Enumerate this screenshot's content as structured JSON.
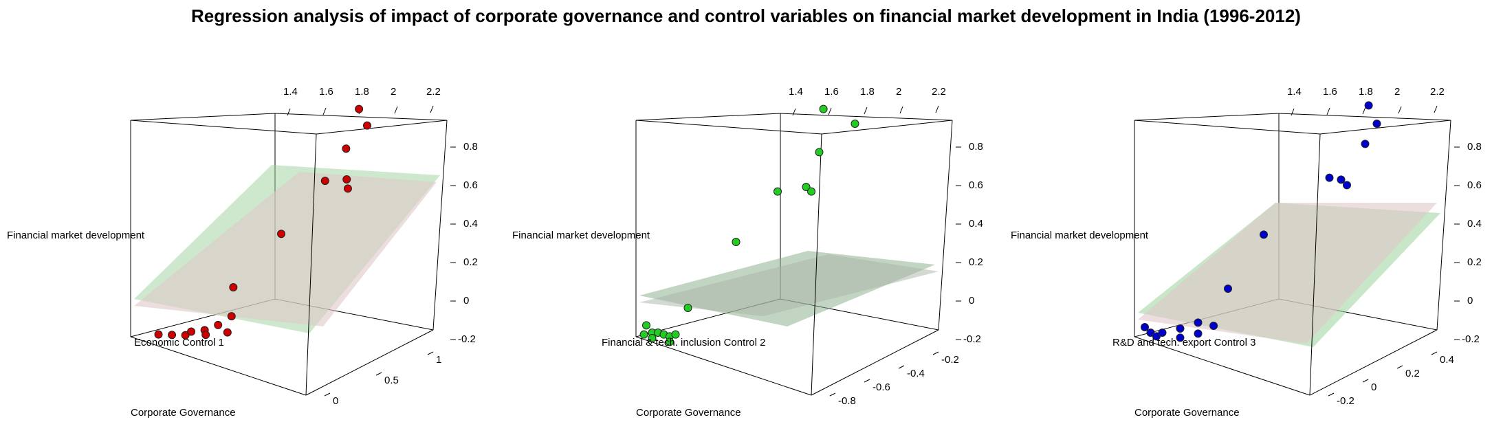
{
  "title": "Regression analysis of impact of corporate governance and control variables on financial market development in India (1996-2012)",
  "chart_data": [
    {
      "type": "scatter",
      "ylabel": "Financial market development",
      "xlabel": "Corporate Governance",
      "zlabel": "Economic Control 1",
      "point_color": "#cc0000",
      "x_ticks": [
        "1.4",
        "1.6",
        "1.8",
        "2",
        "2.2"
      ],
      "y_ticks": [
        "0.8",
        "0.6",
        "0.4",
        "0.2",
        "0",
        "-0.2"
      ],
      "z_ticks": [
        "1",
        "0.5",
        "0"
      ],
      "planes": [
        {
          "color": "#9bd29b",
          "opacity": 0.5
        },
        {
          "color": "#e0c8c8",
          "opacity": 0.6
        }
      ],
      "points": [
        {
          "x": 1.93,
          "y": 0.88,
          "z": 0.95
        },
        {
          "x": 2.0,
          "y": 0.79,
          "z": 0.95
        },
        {
          "x": 1.95,
          "y": 0.68,
          "z": 0.85
        },
        {
          "x": 1.9,
          "y": 0.52,
          "z": 0.75
        },
        {
          "x": 2.02,
          "y": 0.52,
          "z": 0.8
        },
        {
          "x": 2.03,
          "y": 0.47,
          "z": 0.8
        },
        {
          "x": 1.85,
          "y": 0.27,
          "z": 0.5
        },
        {
          "x": 1.7,
          "y": 0.01,
          "z": 0.3
        },
        {
          "x": 1.45,
          "y": -0.2,
          "z": 0.0
        },
        {
          "x": 1.5,
          "y": -0.21,
          "z": 0.05
        },
        {
          "x": 1.55,
          "y": -0.22,
          "z": 0.1
        },
        {
          "x": 1.6,
          "y": -0.2,
          "z": 0.1
        },
        {
          "x": 1.65,
          "y": -0.2,
          "z": 0.15
        },
        {
          "x": 1.7,
          "y": -0.18,
          "z": 0.2
        },
        {
          "x": 1.75,
          "y": -0.14,
          "z": 0.25
        },
        {
          "x": 1.78,
          "y": -0.22,
          "z": 0.2
        },
        {
          "x": 1.62,
          "y": -0.23,
          "z": 0.18
        }
      ]
    },
    {
      "type": "scatter",
      "ylabel": "Financial market development",
      "xlabel": "Corporate Governance",
      "zlabel": "Financial & tech. inclusion Control 2",
      "point_color": "#22cc22",
      "x_ticks": [
        "1.4",
        "1.6",
        "1.8",
        "2",
        "2.2"
      ],
      "y_ticks": [
        "0.8",
        "0.6",
        "0.4",
        "0.2",
        "0",
        "-0.2"
      ],
      "z_ticks": [
        "-0.2",
        "-0.4",
        "-0.6",
        "-0.8"
      ],
      "planes": [
        {
          "color": "#8fb08f",
          "opacity": 0.55
        },
        {
          "color": "#a8b4a8",
          "opacity": 0.5
        }
      ],
      "points": [
        {
          "x": 1.58,
          "y": 0.88,
          "z": -0.2
        },
        {
          "x": 1.85,
          "y": 0.8,
          "z": -0.2
        },
        {
          "x": 1.75,
          "y": 0.67,
          "z": -0.3
        },
        {
          "x": 2.05,
          "y": 0.53,
          "z": -0.5
        },
        {
          "x": 2.3,
          "y": 0.53,
          "z": -0.6
        },
        {
          "x": 1.6,
          "y": 0.48,
          "z": -0.4
        },
        {
          "x": 1.45,
          "y": 0.23,
          "z": -0.5
        },
        {
          "x": 1.45,
          "y": -0.08,
          "z": -0.7
        },
        {
          "x": 1.3,
          "y": -0.15,
          "z": -0.8
        },
        {
          "x": 1.35,
          "y": -0.19,
          "z": -0.8
        },
        {
          "x": 1.4,
          "y": -0.19,
          "z": -0.8
        },
        {
          "x": 1.45,
          "y": -0.2,
          "z": -0.8
        },
        {
          "x": 1.5,
          "y": -0.21,
          "z": -0.8
        },
        {
          "x": 1.55,
          "y": -0.2,
          "z": -0.8
        },
        {
          "x": 1.35,
          "y": -0.22,
          "z": -0.8
        },
        {
          "x": 1.5,
          "y": -0.24,
          "z": -0.8
        },
        {
          "x": 1.28,
          "y": -0.2,
          "z": -0.8
        }
      ]
    },
    {
      "type": "scatter",
      "ylabel": "Financial market development",
      "xlabel": "Corporate Governance",
      "zlabel": "R&D and tech. export Control 3",
      "point_color": "#0000cc",
      "x_ticks": [
        "1.4",
        "1.6",
        "1.8",
        "2",
        "2.2"
      ],
      "y_ticks": [
        "0.8",
        "0.6",
        "0.4",
        "0.2",
        "0",
        "-0.2"
      ],
      "z_ticks": [
        "0.4",
        "0.2",
        "0",
        "-0.2"
      ],
      "planes": [
        {
          "color": "#9bd29b",
          "opacity": 0.55
        },
        {
          "color": "#e0c8c8",
          "opacity": 0.6
        }
      ],
      "points": [
        {
          "x": 1.98,
          "y": 0.9,
          "z": 0.4
        },
        {
          "x": 2.05,
          "y": 0.8,
          "z": 0.4
        },
        {
          "x": 1.95,
          "y": 0.69,
          "z": 0.4
        },
        {
          "x": 1.85,
          "y": 0.53,
          "z": 0.3
        },
        {
          "x": 1.95,
          "y": 0.52,
          "z": 0.3
        },
        {
          "x": 2.0,
          "y": 0.49,
          "z": 0.3
        },
        {
          "x": 1.7,
          "y": 0.27,
          "z": 0.1
        },
        {
          "x": 1.6,
          "y": 0.0,
          "z": 0.0
        },
        {
          "x": 1.3,
          "y": -0.16,
          "z": -0.2
        },
        {
          "x": 1.35,
          "y": -0.19,
          "z": -0.2
        },
        {
          "x": 1.4,
          "y": -0.21,
          "z": -0.2
        },
        {
          "x": 1.45,
          "y": -0.19,
          "z": -0.2
        },
        {
          "x": 1.5,
          "y": -0.18,
          "z": -0.15
        },
        {
          "x": 1.55,
          "y": -0.16,
          "z": -0.1
        },
        {
          "x": 1.55,
          "y": -0.22,
          "z": -0.1
        },
        {
          "x": 1.5,
          "y": -0.23,
          "z": -0.15
        },
        {
          "x": 1.58,
          "y": -0.19,
          "z": -0.05
        }
      ]
    }
  ]
}
